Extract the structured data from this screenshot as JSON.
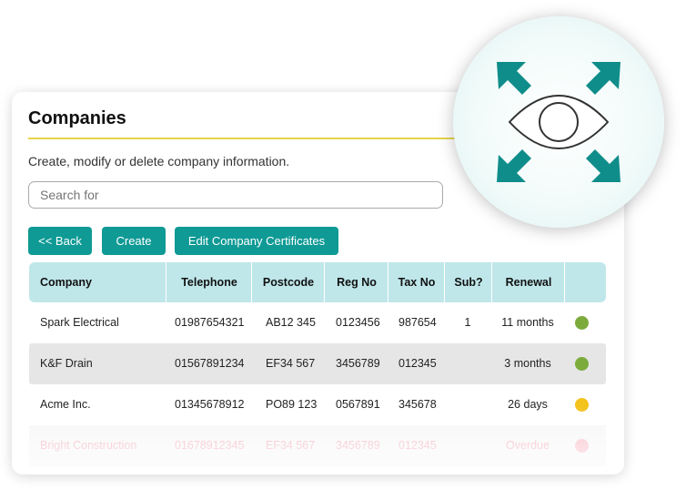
{
  "page": {
    "title": "Companies",
    "subtitle": "Create, modify or delete company information.",
    "search_placeholder": "Search for"
  },
  "buttons": {
    "back": "<< Back",
    "create": "Create",
    "certificates": "Edit Company Certificates"
  },
  "table": {
    "headers": [
      "Company",
      "Telephone",
      "Postcode",
      "Reg No",
      "Tax No",
      "Sub?",
      "Renewal"
    ],
    "rows": [
      {
        "company": "Spark Electrical",
        "telephone": "01987654321",
        "postcode": "AB12 345",
        "reg_no": "0123456",
        "tax_no": "987654",
        "sub": "1",
        "renewal": "11 months",
        "status_color": "#7cab3c"
      },
      {
        "company": "K&F Drain",
        "telephone": "01567891234",
        "postcode": "EF34 567",
        "reg_no": "3456789",
        "tax_no": "012345",
        "sub": "",
        "renewal": "3 months",
        "status_color": "#7cab3c"
      },
      {
        "company": "Acme Inc.",
        "telephone": "01345678912",
        "postcode": "PO89 123",
        "reg_no": "0567891",
        "tax_no": "345678",
        "sub": "",
        "renewal": "26 days",
        "status_color": "#f3c21c"
      },
      {
        "company": "Bright Construction",
        "telephone": "01678912345",
        "postcode": "EF34 567",
        "reg_no": "3456789",
        "tax_no": "012345",
        "sub": "",
        "renewal": "Overdue",
        "status_color": "#f6b8c3"
      }
    ]
  },
  "colors": {
    "accent": "#0f9a95",
    "header_bg": "#bfe7ea",
    "title_rule": "#e6d44a",
    "icon_teal": "#0f8d8a"
  },
  "icons": {
    "badge": "expand-view-eye-icon"
  }
}
